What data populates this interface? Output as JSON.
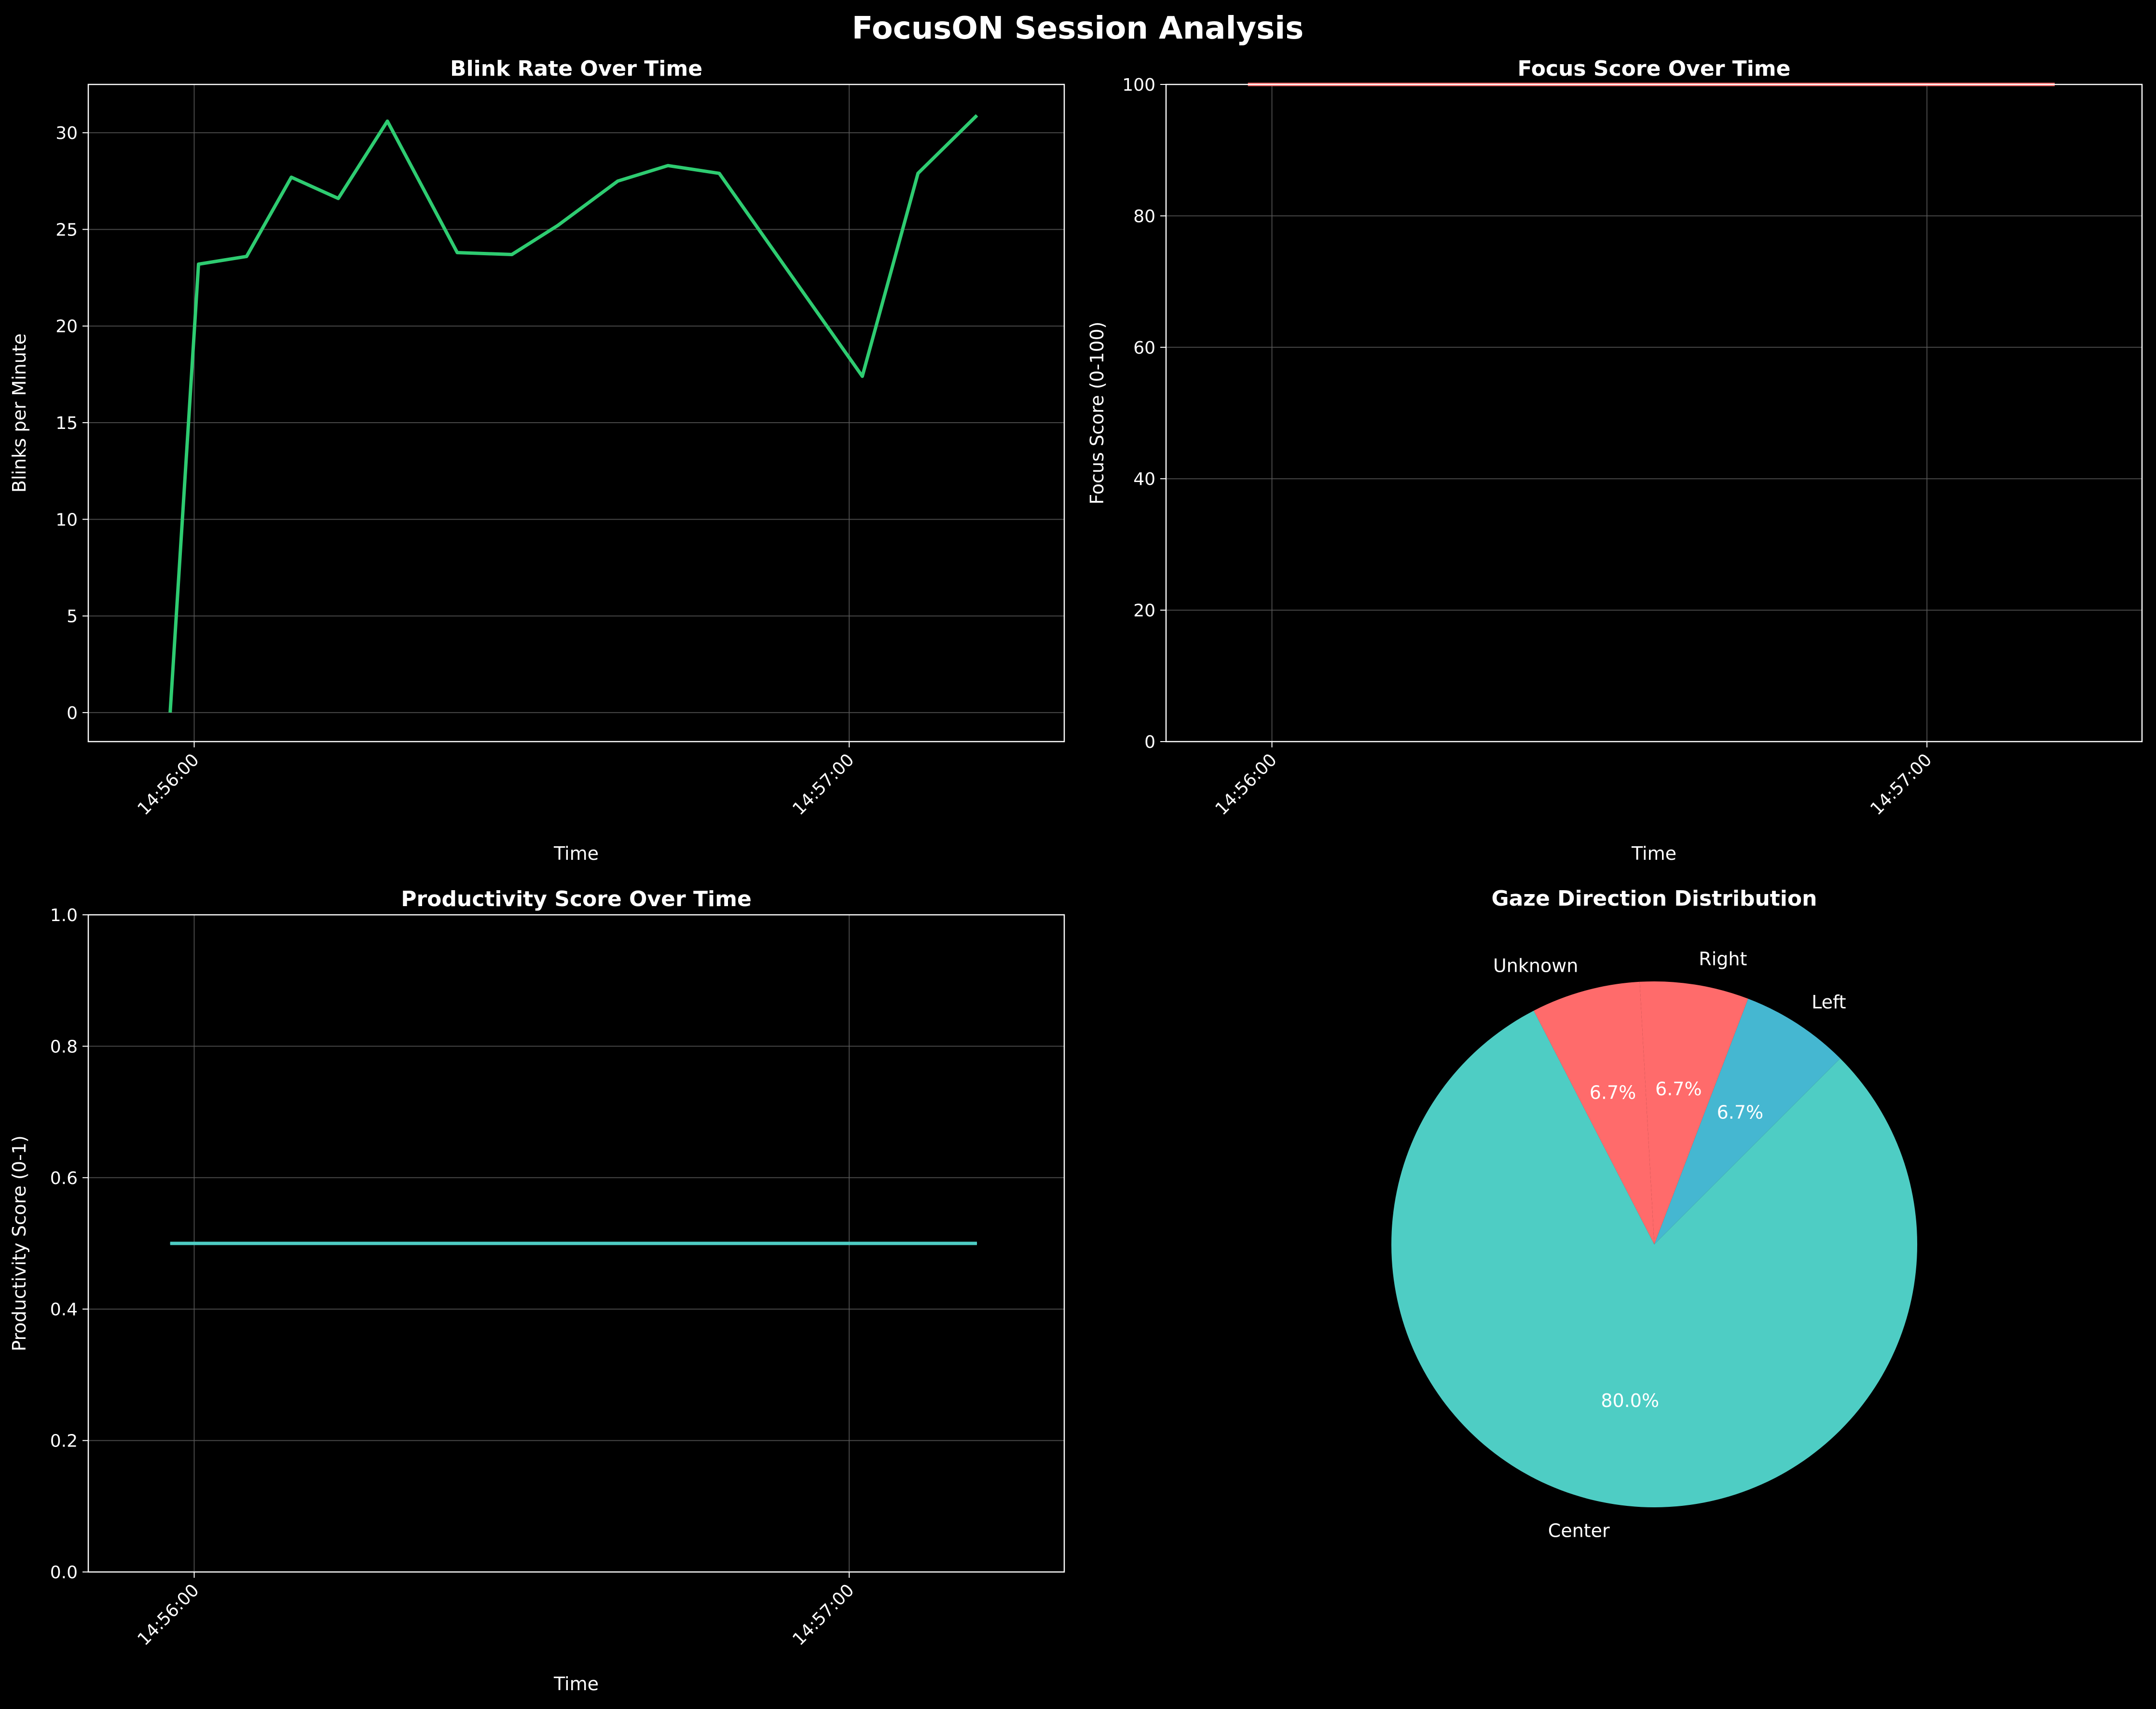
{
  "figure": {
    "title": "FocusON Session Analysis",
    "background": "#000000",
    "text_color": "#ffffff",
    "grid_color": "#5a5a5a"
  },
  "chart_data": [
    {
      "id": "blink",
      "type": "line",
      "title": "Blink Rate Over Time",
      "xlabel": "Time",
      "ylabel": "Blinks per Minute",
      "x": [
        "14:55:57.8",
        "14:56:00.4",
        "14:56:04.8",
        "14:56:08.9",
        "14:56:13.2",
        "14:56:17.7",
        "14:56:24.1",
        "14:56:29.1",
        "14:56:33.3",
        "14:56:38.8",
        "14:56:43.4",
        "14:56:48.1",
        "14:57:01.2",
        "14:57:06.3",
        "14:57:11.7"
      ],
      "values": [
        0,
        23.2,
        23.6,
        27.7,
        26.6,
        30.6,
        23.8,
        23.7,
        25.2,
        27.5,
        28.3,
        27.9,
        17.4,
        27.9,
        30.9
      ],
      "color": "#2ecc71",
      "ylim": [
        -1.5,
        32.5
      ],
      "yticks": [
        0,
        5,
        10,
        15,
        20,
        25,
        30
      ],
      "xticks": [
        "14:56:00",
        "14:57:00"
      ],
      "grid": true
    },
    {
      "id": "focus",
      "type": "line",
      "title": "Focus Score Over Time",
      "xlabel": "Time",
      "ylabel": "Focus Score (0-100)",
      "x": [
        "14:55:57.8",
        "14:57:11.7"
      ],
      "values": [
        100,
        100
      ],
      "color": "#ff6b6b",
      "ylim": [
        0,
        100
      ],
      "yticks": [
        0,
        20,
        40,
        60,
        80,
        100
      ],
      "xticks": [
        "14:56:00",
        "14:57:00"
      ],
      "grid": true
    },
    {
      "id": "productivity",
      "type": "line",
      "title": "Productivity Score Over Time",
      "xlabel": "Time",
      "ylabel": "Productivity Score (0-1)",
      "x": [
        "14:55:57.8",
        "14:57:11.7"
      ],
      "values": [
        0.5,
        0.5
      ],
      "color": "#4ecdc4",
      "ylim": [
        0,
        1
      ],
      "yticks": [
        "0.0",
        "0.2",
        "0.4",
        "0.6",
        "0.8",
        "1.0"
      ],
      "xticks": [
        "14:56:00",
        "14:57:00"
      ],
      "grid": true
    },
    {
      "id": "gaze",
      "type": "pie",
      "title": "Gaze Direction Distribution",
      "slices": [
        {
          "label": "Center",
          "value": 80.0,
          "pct_label": "80.0%",
          "color": "#4ecdc4"
        },
        {
          "label": "Unknown",
          "value": 6.7,
          "pct_label": "6.7%",
          "color": "#ff6b6b"
        },
        {
          "label": "Right",
          "value": 6.7,
          "pct_label": "6.7%",
          "color": "#ff6b6b"
        },
        {
          "label": "Left",
          "value": 6.7,
          "pct_label": "6.7%",
          "color": "#45b7d1"
        }
      ]
    }
  ]
}
